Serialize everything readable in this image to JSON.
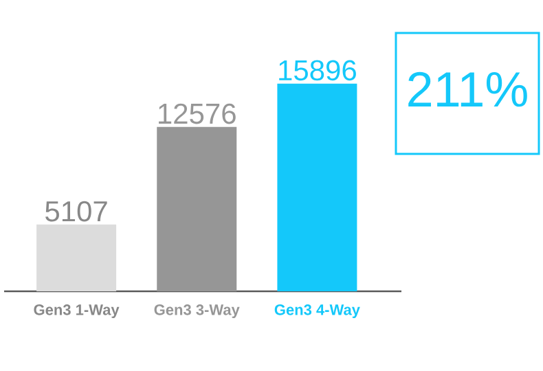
{
  "chart_data": {
    "type": "bar",
    "categories": [
      "Gen3 1-Way",
      "Gen3 3-Way",
      "Gen3 4-Way"
    ],
    "values": [
      5107,
      12576,
      15896
    ],
    "colors": [
      "#dcdcdc",
      "#969696",
      "#14c8fa"
    ],
    "data_labels": true,
    "annotations": [
      "211%"
    ]
  }
}
